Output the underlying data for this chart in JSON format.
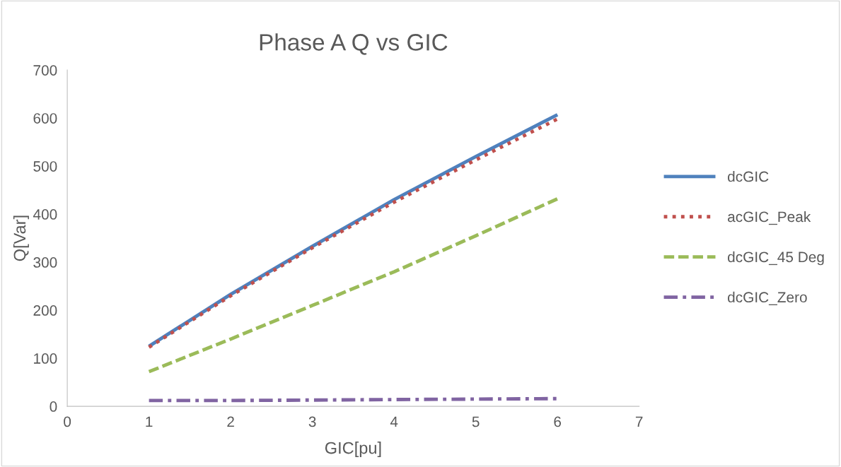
{
  "chart_data": {
    "type": "line",
    "title": "Phase A Q vs GIC",
    "xlabel": "GIC[pu]",
    "ylabel": "Q[Var]",
    "x": [
      1,
      2,
      3,
      4,
      5,
      6
    ],
    "series": [
      {
        "name": "dcGIC",
        "color": "#4f81bd",
        "line_style": "solid",
        "values": [
          125,
          233,
          333,
          430,
          520,
          607
        ]
      },
      {
        "name": "acGIC_Peak",
        "color": "#c0504d",
        "line_style": "dotted",
        "values": [
          123,
          230,
          330,
          425,
          513,
          598
        ]
      },
      {
        "name": "dcGIC_45 Deg",
        "color": "#9bbb59",
        "line_style": "dashed",
        "values": [
          72,
          140,
          210,
          280,
          355,
          432
        ]
      },
      {
        "name": "dcGIC_Zero",
        "color": "#8064a2",
        "line_style": "dashdot",
        "values": [
          12,
          12,
          13,
          14,
          15,
          16
        ]
      }
    ],
    "xlim": [
      0,
      7
    ],
    "xticks": [
      0,
      1,
      2,
      3,
      4,
      5,
      6,
      7
    ],
    "ylim": [
      0,
      700
    ],
    "yticks": [
      0,
      100,
      200,
      300,
      400,
      500,
      600,
      700
    ],
    "grid": false,
    "legend": "right",
    "marker": "none"
  }
}
